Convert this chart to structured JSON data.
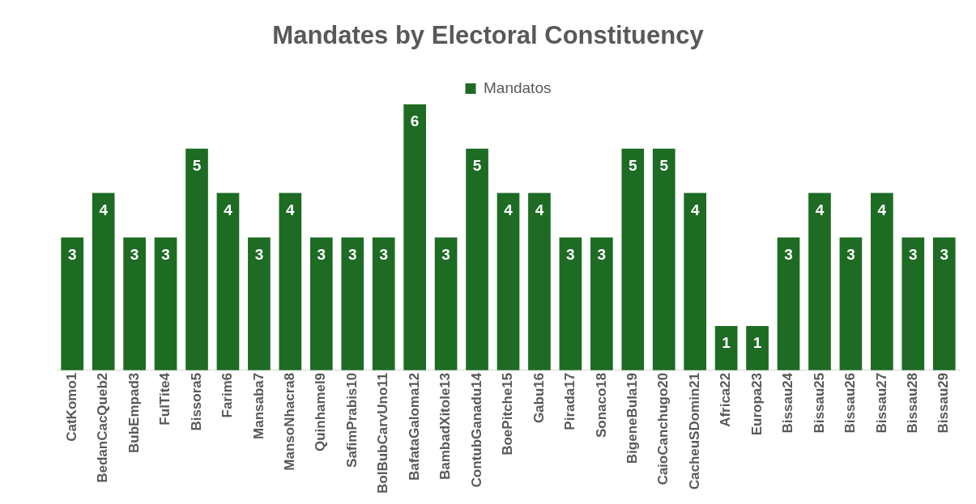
{
  "chart_data": {
    "type": "bar",
    "title": "Mandates by Electoral Constituency",
    "categories": [
      "CatKomo1",
      "BedanCacQueb2",
      "BubEmpad3",
      "FulTite4",
      "Bissora5",
      "Farim6",
      "Mansaba7",
      "MansoNhacra8",
      "Quinhamel9",
      "SafimPrabis10",
      "BolBubCarvUno11",
      "BafataGaloma12",
      "BambadXitole13",
      "ContubGanadu14",
      "BoePitche15",
      "Gabu16",
      "Pirada17",
      "Sonaco18",
      "BigeneBula19",
      "CaioCanchugo20",
      "CacheuSDomin21",
      "Africa22",
      "Europa23",
      "Bissau24",
      "Bissau25",
      "Bissau26",
      "Bissau27",
      "Bissau28",
      "Bissau29"
    ],
    "series": [
      {
        "name": "Mandatos",
        "color": "#1e6b24",
        "values": [
          3,
          4,
          3,
          3,
          5,
          4,
          3,
          4,
          3,
          3,
          3,
          6,
          3,
          5,
          4,
          4,
          3,
          3,
          5,
          5,
          4,
          1,
          1,
          3,
          4,
          3,
          4,
          3,
          3
        ]
      }
    ],
    "data_labels": true,
    "legend": "top",
    "grid": false,
    "tick_labels": "x"
  }
}
